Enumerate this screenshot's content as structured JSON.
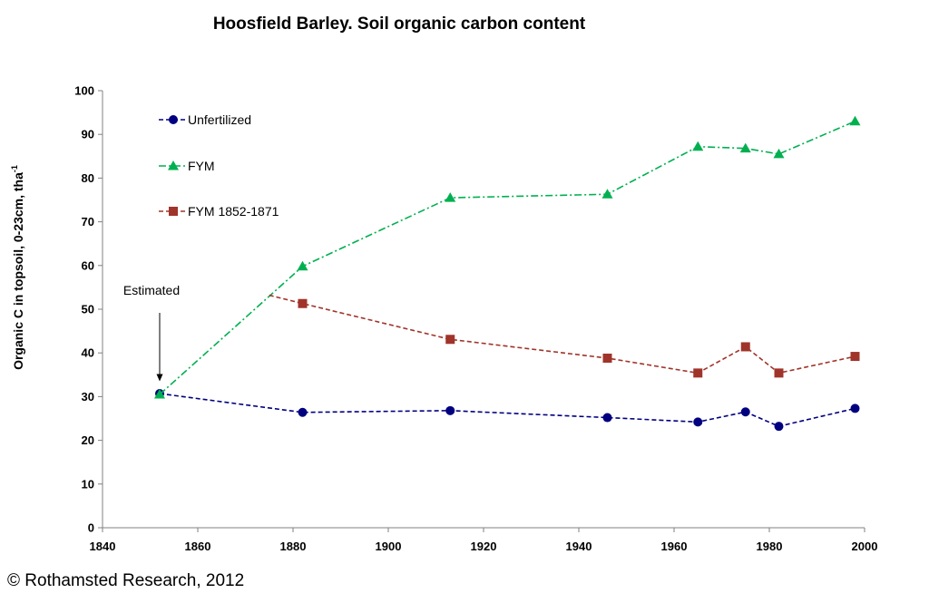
{
  "chart_data": {
    "type": "line",
    "title": "Hoosfield Barley. Soil organic carbon content",
    "ylabel": "Organic C in topsoil, 0-23cm, tha",
    "ylabel_sup": "-1",
    "xlabel": "",
    "xlim": [
      1840,
      2000
    ],
    "ylim": [
      0,
      100
    ],
    "xticks": [
      1840,
      1860,
      1880,
      1900,
      1920,
      1940,
      1960,
      1980,
      2000
    ],
    "yticks": [
      0,
      10,
      20,
      30,
      40,
      50,
      60,
      70,
      80,
      90,
      100
    ],
    "grid": false,
    "legend_position": "top-left",
    "series": [
      {
        "name": "Unfertilized",
        "color": "#000080",
        "marker": "circle",
        "line_style": "dashed",
        "x": [
          1852,
          1882,
          1913,
          1946,
          1965,
          1975,
          1982,
          1998
        ],
        "y": [
          30.7,
          26.4,
          26.8,
          25.2,
          24.2,
          26.5,
          23.2,
          27.3
        ]
      },
      {
        "name": "FYM",
        "color": "#00B050",
        "marker": "triangle",
        "line_style": "dash-dot",
        "x": [
          1852,
          1882,
          1913,
          1946,
          1965,
          1975,
          1982,
          1998
        ],
        "y": [
          30.5,
          59.8,
          75.5,
          76.3,
          87.2,
          86.8,
          85.5,
          93.0
        ]
      },
      {
        "name": "FYM 1852-1871",
        "color": "#A0342A",
        "marker": "square",
        "line_style": "dashed",
        "x": [
          1882,
          1913,
          1946,
          1965,
          1975,
          1982,
          1998
        ],
        "y": [
          51.3,
          43.1,
          38.8,
          35.4,
          41.4,
          35.4,
          39.2
        ],
        "lead_in": {
          "x": 1875,
          "y": 53.2
        }
      }
    ],
    "annotations": [
      {
        "text": "Estimated",
        "arrow_to": {
          "x": 1852,
          "y": 33.5
        }
      }
    ]
  },
  "footer": {
    "copyright": "© Rothamsted Research, 2012"
  }
}
